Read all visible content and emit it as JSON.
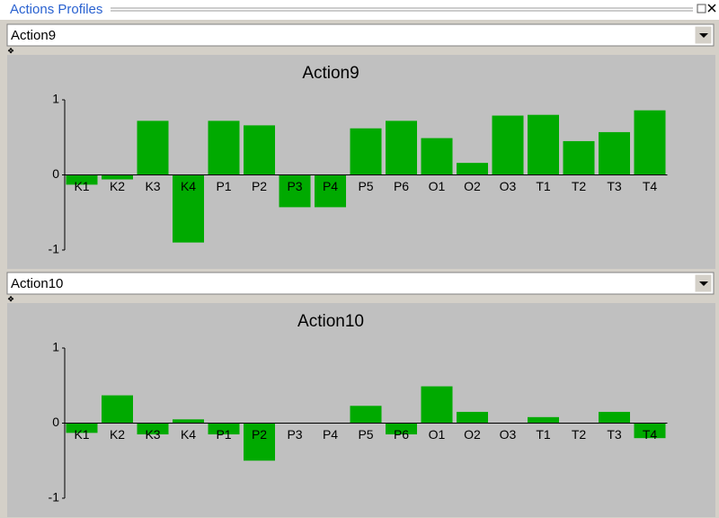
{
  "window": {
    "title": "Actions Profiles"
  },
  "dropdowns": [
    "Action9",
    "Action10"
  ],
  "chart_data": [
    {
      "type": "bar",
      "title": "Action9",
      "color": "#00aa00",
      "categories": [
        "K1",
        "K2",
        "K3",
        "K4",
        "P1",
        "P2",
        "P3",
        "P4",
        "P5",
        "P6",
        "O1",
        "O2",
        "O3",
        "T1",
        "T2",
        "T3",
        "T4"
      ],
      "values": [
        -0.13,
        -0.06,
        0.72,
        -0.9,
        0.72,
        0.66,
        -0.43,
        -0.43,
        0.62,
        0.72,
        0.49,
        0.16,
        0.79,
        0.8,
        0.45,
        0.57,
        0.86
      ],
      "ylim": [
        -1,
        1
      ],
      "yticks": [
        -1,
        0,
        1
      ]
    },
    {
      "type": "bar",
      "title": "Action10",
      "color": "#00aa00",
      "categories": [
        "K1",
        "K2",
        "K3",
        "K4",
        "P1",
        "P2",
        "P3",
        "P4",
        "P5",
        "P6",
        "O1",
        "O2",
        "O3",
        "T1",
        "T2",
        "T3",
        "T4"
      ],
      "values": [
        -0.13,
        0.37,
        -0.15,
        0.05,
        -0.15,
        -0.5,
        0,
        0,
        0.23,
        -0.15,
        0.49,
        0.15,
        0,
        0.08,
        0,
        0.15,
        -0.2
      ],
      "ylim": [
        -1,
        1
      ],
      "yticks": [
        -1,
        0,
        1
      ]
    }
  ]
}
